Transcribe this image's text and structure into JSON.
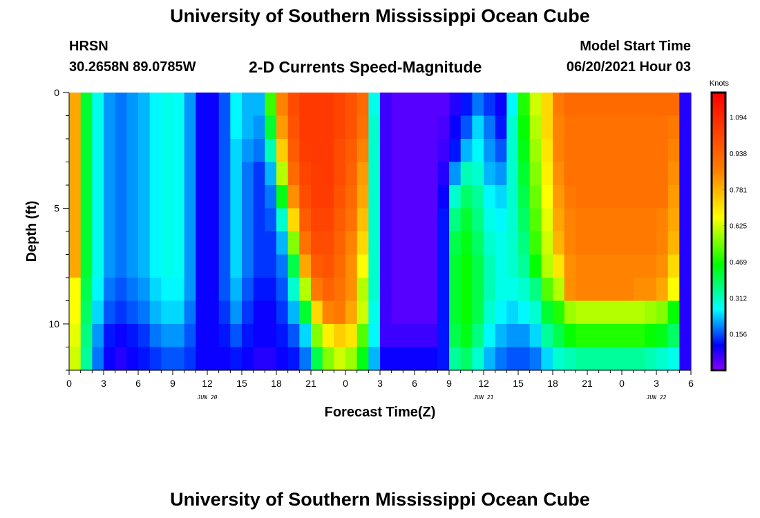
{
  "header": {
    "title": "University of Southern Mississippi Ocean Cube",
    "station": "HRSN",
    "coords": "30.2658N  89.0785W",
    "subtitle": "2-D Currents Speed-Magnitude",
    "model_label": "Model Start Time",
    "model_time": "06/20/2021 Hour 03"
  },
  "footer": {
    "title": "University of Southern Mississippi Ocean Cube"
  },
  "chart_data": {
    "type": "heatmap",
    "title": "2-D Currents Speed-Magnitude",
    "xlabel": "Forecast Time(Z)",
    "ylabel": "Depth (ft)",
    "x_tick_labels": [
      "0",
      "3",
      "6",
      "9",
      "12",
      "15",
      "18",
      "21",
      "0",
      "3",
      "6",
      "9",
      "12",
      "15",
      "18",
      "21",
      "0",
      "3",
      "6"
    ],
    "date_labels": [
      {
        "text": "JUN 20",
        "tick": 4
      },
      {
        "text": "JUN 21",
        "tick": 12
      },
      {
        "text": "JUN 22",
        "tick": 17
      }
    ],
    "y_ticks": [
      0,
      5,
      10
    ],
    "ylim": [
      0,
      12
    ],
    "time_range_hours": [
      0,
      54
    ],
    "colorbar": {
      "label": "Knots",
      "min": 0.0,
      "max": 1.2,
      "ticks": [
        "0.156",
        "0.312",
        "0.469",
        "0.625",
        "0.781",
        "0.938",
        "1.094"
      ]
    },
    "depth_rows": [
      0.5,
      1.5,
      2.5,
      3.5,
      4.5,
      5.5,
      6.5,
      7.5,
      8.5,
      9.5,
      10.5,
      11.5
    ],
    "column_hours": [
      0,
      1,
      2,
      3,
      4,
      5,
      6,
      7,
      8,
      9,
      10,
      11,
      12,
      13,
      14,
      15,
      16,
      17,
      18,
      19,
      20,
      21,
      22,
      23,
      24,
      25,
      26,
      27,
      28,
      29,
      30,
      31,
      32,
      33,
      34,
      35,
      36,
      37,
      38,
      39,
      40,
      41,
      42,
      43,
      44,
      45,
      46,
      47,
      48,
      49,
      50,
      51,
      52,
      53
    ],
    "values": [
      [
        0.8,
        0.42,
        0.28,
        0.2,
        0.18,
        0.2,
        0.22,
        0.26,
        0.28,
        0.27,
        0.2,
        0.1,
        0.1,
        0.16,
        0.26,
        0.22,
        0.22,
        0.5,
        0.86,
        1.0,
        1.05,
        1.05,
        1.05,
        1.02,
        0.98,
        0.92,
        0.28,
        0.06,
        0.04,
        0.04,
        0.04,
        0.04,
        0.04,
        0.08,
        0.12,
        0.18,
        0.14,
        0.1,
        0.26,
        0.48,
        0.62,
        0.72,
        0.88,
        0.92,
        0.92,
        0.92,
        0.92,
        0.92,
        0.92,
        0.92,
        0.92,
        0.92,
        0.92,
        0.08
      ],
      [
        0.8,
        0.42,
        0.28,
        0.2,
        0.18,
        0.2,
        0.22,
        0.26,
        0.28,
        0.27,
        0.2,
        0.1,
        0.1,
        0.16,
        0.26,
        0.22,
        0.2,
        0.42,
        0.82,
        0.98,
        1.05,
        1.05,
        1.05,
        1.02,
        0.98,
        0.9,
        0.3,
        0.06,
        0.04,
        0.04,
        0.04,
        0.04,
        0.05,
        0.1,
        0.16,
        0.24,
        0.18,
        0.12,
        0.3,
        0.46,
        0.6,
        0.72,
        0.86,
        0.9,
        0.9,
        0.9,
        0.9,
        0.9,
        0.9,
        0.9,
        0.9,
        0.9,
        0.88,
        0.08
      ],
      [
        0.8,
        0.42,
        0.28,
        0.2,
        0.18,
        0.2,
        0.22,
        0.26,
        0.28,
        0.27,
        0.2,
        0.1,
        0.1,
        0.16,
        0.24,
        0.2,
        0.18,
        0.32,
        0.74,
        0.96,
        1.04,
        1.05,
        1.05,
        1.0,
        0.96,
        0.86,
        0.3,
        0.06,
        0.04,
        0.04,
        0.04,
        0.04,
        0.06,
        0.12,
        0.22,
        0.26,
        0.2,
        0.16,
        0.3,
        0.44,
        0.58,
        0.7,
        0.86,
        0.9,
        0.9,
        0.9,
        0.9,
        0.9,
        0.9,
        0.9,
        0.9,
        0.9,
        0.86,
        0.08
      ],
      [
        0.8,
        0.42,
        0.28,
        0.2,
        0.18,
        0.2,
        0.22,
        0.26,
        0.28,
        0.27,
        0.2,
        0.1,
        0.1,
        0.16,
        0.24,
        0.18,
        0.14,
        0.22,
        0.6,
        0.92,
        1.02,
        1.04,
        1.05,
        1.0,
        0.94,
        0.82,
        0.3,
        0.06,
        0.04,
        0.04,
        0.04,
        0.04,
        0.08,
        0.2,
        0.32,
        0.3,
        0.22,
        0.2,
        0.3,
        0.42,
        0.56,
        0.68,
        0.84,
        0.9,
        0.9,
        0.9,
        0.9,
        0.9,
        0.9,
        0.9,
        0.9,
        0.9,
        0.84,
        0.08
      ],
      [
        0.8,
        0.42,
        0.28,
        0.2,
        0.18,
        0.2,
        0.22,
        0.26,
        0.28,
        0.27,
        0.2,
        0.1,
        0.1,
        0.16,
        0.24,
        0.18,
        0.14,
        0.18,
        0.44,
        0.84,
        1.0,
        1.04,
        1.04,
        0.98,
        0.92,
        0.8,
        0.3,
        0.06,
        0.04,
        0.04,
        0.04,
        0.04,
        0.1,
        0.3,
        0.38,
        0.34,
        0.26,
        0.24,
        0.3,
        0.4,
        0.54,
        0.66,
        0.82,
        0.88,
        0.9,
        0.9,
        0.9,
        0.9,
        0.9,
        0.9,
        0.9,
        0.9,
        0.82,
        0.08
      ],
      [
        0.8,
        0.42,
        0.28,
        0.2,
        0.18,
        0.2,
        0.22,
        0.26,
        0.28,
        0.27,
        0.2,
        0.1,
        0.1,
        0.16,
        0.24,
        0.18,
        0.14,
        0.16,
        0.3,
        0.72,
        0.96,
        1.02,
        1.02,
        0.96,
        0.9,
        0.76,
        0.3,
        0.06,
        0.04,
        0.04,
        0.04,
        0.04,
        0.12,
        0.36,
        0.42,
        0.36,
        0.28,
        0.26,
        0.3,
        0.38,
        0.52,
        0.64,
        0.8,
        0.86,
        0.88,
        0.88,
        0.88,
        0.88,
        0.88,
        0.88,
        0.88,
        0.86,
        0.8,
        0.08
      ],
      [
        0.8,
        0.42,
        0.28,
        0.2,
        0.18,
        0.2,
        0.22,
        0.26,
        0.28,
        0.27,
        0.2,
        0.1,
        0.1,
        0.16,
        0.24,
        0.18,
        0.14,
        0.14,
        0.22,
        0.56,
        0.9,
        1.0,
        1.0,
        0.94,
        0.86,
        0.72,
        0.3,
        0.06,
        0.04,
        0.04,
        0.04,
        0.04,
        0.12,
        0.4,
        0.44,
        0.38,
        0.3,
        0.28,
        0.3,
        0.36,
        0.5,
        0.62,
        0.78,
        0.86,
        0.88,
        0.88,
        0.88,
        0.88,
        0.88,
        0.88,
        0.88,
        0.86,
        0.78,
        0.08
      ],
      [
        0.8,
        0.42,
        0.28,
        0.2,
        0.18,
        0.2,
        0.22,
        0.26,
        0.28,
        0.27,
        0.2,
        0.1,
        0.1,
        0.16,
        0.24,
        0.18,
        0.14,
        0.14,
        0.18,
        0.4,
        0.8,
        0.96,
        0.98,
        0.92,
        0.84,
        0.66,
        0.3,
        0.06,
        0.04,
        0.04,
        0.04,
        0.04,
        0.12,
        0.42,
        0.46,
        0.4,
        0.32,
        0.28,
        0.3,
        0.34,
        0.46,
        0.6,
        0.7,
        0.84,
        0.86,
        0.86,
        0.86,
        0.86,
        0.86,
        0.86,
        0.86,
        0.84,
        0.72,
        0.08
      ],
      [
        0.66,
        0.4,
        0.26,
        0.18,
        0.16,
        0.18,
        0.2,
        0.24,
        0.26,
        0.26,
        0.2,
        0.1,
        0.1,
        0.16,
        0.22,
        0.16,
        0.12,
        0.12,
        0.16,
        0.3,
        0.6,
        0.88,
        0.94,
        0.9,
        0.84,
        0.6,
        0.3,
        0.06,
        0.04,
        0.04,
        0.04,
        0.04,
        0.12,
        0.42,
        0.46,
        0.4,
        0.32,
        0.28,
        0.28,
        0.3,
        0.36,
        0.52,
        0.6,
        0.84,
        0.86,
        0.86,
        0.86,
        0.86,
        0.86,
        0.84,
        0.84,
        0.8,
        0.66,
        0.08
      ],
      [
        0.66,
        0.38,
        0.24,
        0.16,
        0.14,
        0.16,
        0.18,
        0.22,
        0.24,
        0.24,
        0.18,
        0.1,
        0.1,
        0.14,
        0.2,
        0.14,
        0.1,
        0.1,
        0.14,
        0.22,
        0.42,
        0.72,
        0.86,
        0.88,
        0.8,
        0.62,
        0.28,
        0.06,
        0.04,
        0.04,
        0.04,
        0.04,
        0.12,
        0.42,
        0.46,
        0.4,
        0.3,
        0.26,
        0.24,
        0.26,
        0.3,
        0.42,
        0.48,
        0.58,
        0.6,
        0.6,
        0.6,
        0.6,
        0.6,
        0.6,
        0.58,
        0.56,
        0.46,
        0.08
      ],
      [
        0.64,
        0.36,
        0.2,
        0.12,
        0.1,
        0.12,
        0.14,
        0.18,
        0.2,
        0.2,
        0.16,
        0.1,
        0.1,
        0.12,
        0.16,
        0.12,
        0.1,
        0.1,
        0.12,
        0.16,
        0.24,
        0.56,
        0.68,
        0.74,
        0.7,
        0.52,
        0.26,
        0.06,
        0.06,
        0.06,
        0.06,
        0.06,
        0.12,
        0.4,
        0.44,
        0.36,
        0.26,
        0.22,
        0.2,
        0.2,
        0.24,
        0.34,
        0.4,
        0.46,
        0.48,
        0.48,
        0.48,
        0.48,
        0.48,
        0.48,
        0.46,
        0.44,
        0.38,
        0.08
      ],
      [
        0.62,
        0.34,
        0.18,
        0.1,
        0.08,
        0.1,
        0.12,
        0.14,
        0.16,
        0.16,
        0.14,
        0.1,
        0.1,
        0.1,
        0.12,
        0.1,
        0.08,
        0.08,
        0.1,
        0.12,
        0.18,
        0.4,
        0.56,
        0.62,
        0.58,
        0.44,
        0.22,
        0.1,
        0.1,
        0.1,
        0.1,
        0.1,
        0.12,
        0.34,
        0.38,
        0.3,
        0.22,
        0.18,
        0.16,
        0.16,
        0.18,
        0.24,
        0.3,
        0.32,
        0.34,
        0.34,
        0.34,
        0.34,
        0.34,
        0.34,
        0.32,
        0.3,
        0.28,
        0.08
      ]
    ]
  }
}
